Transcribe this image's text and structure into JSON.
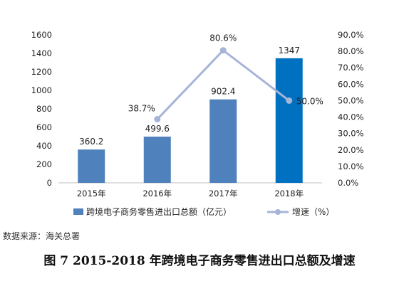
{
  "chart_data": {
    "type": "bar",
    "categories": [
      "2015年",
      "2016年",
      "2017年",
      "2018年"
    ],
    "series": [
      {
        "name": "跨境电子商务零售进出口总额（亿元）",
        "kind": "bar",
        "axis": "left",
        "values": [
          360.2,
          499.6,
          902.4,
          1347
        ],
        "labels": [
          "360.2",
          "499.6",
          "902.4",
          "1347"
        ],
        "color": "#4F81BD",
        "last_color": "#0070C0"
      },
      {
        "name": "增速（%）",
        "kind": "line",
        "axis": "right",
        "values": [
          null,
          38.7,
          80.6,
          50.0
        ],
        "labels": [
          "",
          "38.7%",
          "80.6%",
          "50.0%"
        ],
        "color": "#A6B4D8"
      }
    ],
    "y_left": {
      "min": 0,
      "max": 1600,
      "step": 200,
      "ticks": [
        "0",
        "200",
        "400",
        "600",
        "800",
        "1000",
        "1200",
        "1400",
        "1600"
      ]
    },
    "y_right": {
      "min": 0,
      "max": 90,
      "step": 10,
      "ticks": [
        "0.0%",
        "10.0%",
        "20.0%",
        "30.0%",
        "40.0%",
        "50.0%",
        "60.0%",
        "70.0%",
        "80.0%",
        "90.0%"
      ]
    },
    "legend_position": "bottom",
    "grid": false
  },
  "source_text": "数据来源：海关总署",
  "caption": "图 7  2015-2018 年跨境电子商务零售进出口总额及增速"
}
